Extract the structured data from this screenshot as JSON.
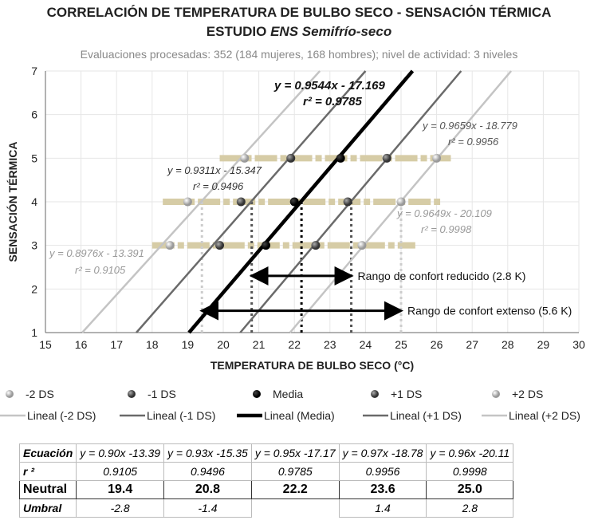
{
  "title": "CORRELACIÓN DE TEMPERATURA DE BULBO SECO - SENSACIÓN TÉRMICA",
  "title2_prefix": "ESTUDIO ",
  "title2_em": "ENS Semifrío-seco",
  "subtitle": "Evaluaciones procesadas: 352 (184 mujeres, 168 hombres); nivel de actividad: 3 niveles",
  "chart_data": {
    "type": "scatter",
    "xlabel": "TEMPERATURA DE BULBO SECO  (°C)",
    "ylabel": "SENSACIÓN TÉRMICA",
    "xlim": [
      15,
      30
    ],
    "ylim": [
      1,
      7
    ],
    "grid": true,
    "legend": "bottom",
    "xticks": [
      "15",
      "16",
      "17",
      "18",
      "19",
      "20",
      "21",
      "22",
      "23",
      "24",
      "25",
      "26",
      "27",
      "28",
      "29",
      "30"
    ],
    "yticks": [
      "1",
      "2",
      "3",
      "4",
      "5",
      "6",
      "7"
    ],
    "series": [
      {
        "name": "-2 DS",
        "trend": "Lineal (-2 DS)",
        "color": "#c4c4c4",
        "width": 2.5,
        "points": [
          [
            18.5,
            3
          ],
          [
            19.0,
            4
          ],
          [
            20.6,
            5
          ]
        ],
        "slope": 0.8976,
        "intercept": -13.391,
        "eq": "y = 0.8976x - 13.391",
        "r2": "r² = 0.9105"
      },
      {
        "name": "-1 DS",
        "trend": "Lineal (-1 DS)",
        "color": "#6a6a6a",
        "width": 2.5,
        "points": [
          [
            19.9,
            3
          ],
          [
            20.5,
            4
          ],
          [
            21.9,
            5
          ]
        ],
        "slope": 0.9311,
        "intercept": -15.347,
        "eq": "y = 0.9311x - 15.347",
        "r2": "r² = 0.9496"
      },
      {
        "name": "Media",
        "trend": "Lineal (Media)",
        "color": "#000000",
        "width": 4.5,
        "points": [
          [
            21.2,
            3
          ],
          [
            22.0,
            4
          ],
          [
            23.3,
            5
          ]
        ],
        "slope": 0.9544,
        "intercept": -17.169,
        "eq": "y = 0.9544x - 17.169",
        "r2": "r² = 0.9785"
      },
      {
        "name": "+1 DS",
        "trend": "Lineal (+1 DS)",
        "color": "#6a6a6a",
        "width": 2.5,
        "points": [
          [
            22.6,
            3
          ],
          [
            23.5,
            4
          ],
          [
            24.6,
            5
          ]
        ],
        "slope": 0.9659,
        "intercept": -18.779,
        "eq": "y = 0.9659x - 18.779",
        "r2": "r² = 0.9956"
      },
      {
        "name": "+2 DS",
        "trend": "Lineal (+2 DS)",
        "color": "#c4c4c4",
        "width": 2.5,
        "points": [
          [
            23.9,
            3
          ],
          [
            25.0,
            4
          ],
          [
            26.0,
            5
          ]
        ],
        "slope": 0.9649,
        "intercept": -20.109,
        "eq": "y = 0.9649x - 20.109",
        "r2": "r² = 0.9998"
      }
    ],
    "bands": [
      {
        "y": 3,
        "x": [
          18.0,
          25.4
        ]
      },
      {
        "y": 4,
        "x": [
          18.3,
          26.1
        ]
      },
      {
        "y": 5,
        "x": [
          19.9,
          26.4
        ]
      }
    ],
    "neutral_lines": [
      19.4,
      20.8,
      22.2,
      23.6,
      25.0
    ],
    "annotations": [
      {
        "text": "Rango de confort reducido (2.8 K)",
        "x": [
          20.8,
          23.6
        ],
        "y": 2.3
      },
      {
        "text": "Rango de confort extenso (5.6 K)",
        "x": [
          19.4,
          25.0
        ],
        "y": 1.5
      }
    ]
  },
  "table": {
    "headers": [
      "Ecuación",
      "r ²",
      "Neutral",
      "Umbral"
    ],
    "ecuacion": [
      "y = 0.90x -13.39",
      "y = 0.93x -15.35",
      "y = 0.95x -17.17",
      "y = 0.97x -18.78",
      "y = 0.96x -20.11"
    ],
    "r2": [
      "0.9105",
      "0.9496",
      "0.9785",
      "0.9956",
      "0.9998"
    ],
    "neutral": [
      "19.4",
      "20.8",
      "22.2",
      "23.6",
      "25.0"
    ],
    "umbral": [
      "-2.8",
      "-1.4",
      "",
      "1.4",
      "2.8"
    ]
  }
}
